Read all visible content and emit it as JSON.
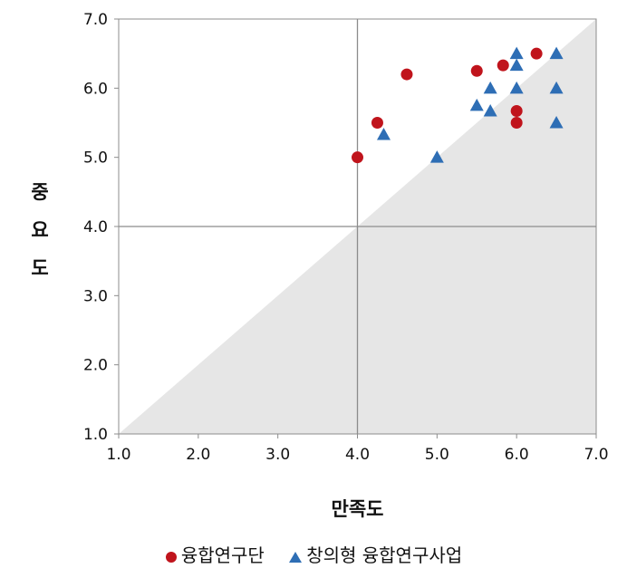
{
  "chart_data": {
    "type": "scatter",
    "xlabel": "만족도",
    "ylabel": "중요도",
    "xlim": [
      1.0,
      7.0
    ],
    "ylim": [
      1.0,
      7.0
    ],
    "xticks": [
      "1.0",
      "2.0",
      "3.0",
      "4.0",
      "5.0",
      "6.0",
      "7.0"
    ],
    "yticks": [
      "1.0",
      "2.0",
      "3.0",
      "4.0",
      "5.0",
      "6.0",
      "7.0"
    ],
    "reference_lines": {
      "x": 4.0,
      "y": 4.0
    },
    "shaded_region": "below y = x diagonal",
    "grid": false,
    "legend_position": "bottom",
    "series": [
      {
        "name": "융합연구단",
        "marker": "circle",
        "color": "#c0141c",
        "points": [
          [
            4.0,
            5.0
          ],
          [
            4.25,
            5.5
          ],
          [
            4.62,
            6.2
          ],
          [
            5.5,
            6.25
          ],
          [
            5.83,
            6.33
          ],
          [
            6.25,
            6.5
          ],
          [
            6.0,
            5.67
          ],
          [
            6.0,
            5.5
          ]
        ]
      },
      {
        "name": "창의형 융합연구사업",
        "marker": "triangle",
        "color": "#2e6eb5",
        "points": [
          [
            4.33,
            5.33
          ],
          [
            5.0,
            5.0
          ],
          [
            5.5,
            5.75
          ],
          [
            5.67,
            5.67
          ],
          [
            5.67,
            6.0
          ],
          [
            6.0,
            6.5
          ],
          [
            6.0,
            6.33
          ],
          [
            6.0,
            6.0
          ],
          [
            6.5,
            6.5
          ],
          [
            6.5,
            6.0
          ],
          [
            6.5,
            5.5
          ]
        ]
      }
    ]
  }
}
